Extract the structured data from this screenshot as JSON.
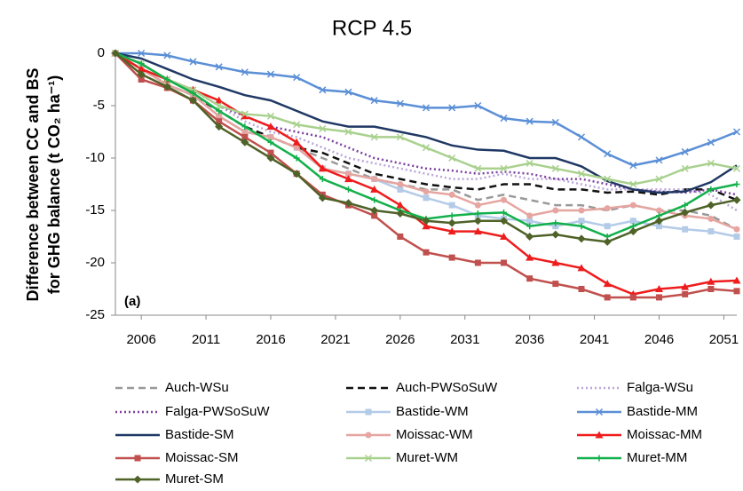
{
  "chart_data": {
    "type": "line",
    "title": "RCP 4.5",
    "y_label_lines": [
      "Difference between CC and BS",
      "for GHG balance (t CO₂ ha⁻¹)"
    ],
    "annotation": "(a)",
    "x": [
      2004,
      2006,
      2008,
      2010,
      2012,
      2014,
      2016,
      2018,
      2020,
      2022,
      2024,
      2026,
      2028,
      2030,
      2032,
      2034,
      2036,
      2038,
      2040,
      2042,
      2044,
      2046,
      2048,
      2050,
      2052
    ],
    "xlim": [
      2004,
      2052
    ],
    "xticks": [
      2006,
      2011,
      2016,
      2021,
      2026,
      2031,
      2036,
      2041,
      2046,
      2051
    ],
    "ylim": [
      -25,
      0
    ],
    "yticks": [
      0,
      -5,
      -10,
      -15,
      -20,
      -25
    ],
    "series": [
      {
        "name": "Auch-WSu",
        "color": "#999999",
        "style": "dashed",
        "marker": "none",
        "values": [
          0,
          -1.5,
          -3,
          -4,
          -5.5,
          -7,
          -8,
          -9,
          -10,
          -11,
          -12,
          -12.5,
          -13,
          -13,
          -14,
          -13.5,
          -14,
          -14.5,
          -14.5,
          -15,
          -14.5,
          -15,
          -15,
          -15.5,
          -16.8
        ]
      },
      {
        "name": "Auch-PWSoSuW",
        "color": "#111111",
        "style": "dashed",
        "marker": "none",
        "values": [
          0,
          -1.5,
          -3,
          -4,
          -5.5,
          -7,
          -8,
          -9,
          -9.5,
          -10.5,
          -11.5,
          -12,
          -12.5,
          -12.8,
          -13,
          -12.5,
          -12.5,
          -13,
          -13,
          -13.3,
          -13.2,
          -13.5,
          -13,
          -13,
          -14
        ]
      },
      {
        "name": "Falga-WSu",
        "color": "#b9a6d9",
        "style": "dotted",
        "marker": "none",
        "values": [
          0,
          -1,
          -2.5,
          -3.5,
          -5,
          -6.5,
          -7.5,
          -8,
          -9,
          -10,
          -10.5,
          -11,
          -11.5,
          -12,
          -12,
          -11.5,
          -12,
          -12,
          -12.5,
          -13,
          -13,
          -13,
          -13,
          -13.5,
          -15
        ]
      },
      {
        "name": "Falga-PWSoSuW",
        "color": "#7b3fa0",
        "style": "dotted",
        "marker": "none",
        "values": [
          0,
          -1,
          -2.5,
          -3.5,
          -5,
          -6,
          -7,
          -7.5,
          -8,
          -9,
          -10,
          -10.5,
          -11,
          -11.2,
          -11.5,
          -11.3,
          -11.5,
          -12,
          -12,
          -12.5,
          -13,
          -13.2,
          -13.3,
          -13,
          -13.5
        ]
      },
      {
        "name": "Bastide-WM",
        "color": "#b4cbe8",
        "style": "solid",
        "marker": "square",
        "values": [
          0,
          -1.5,
          -3,
          -4,
          -6,
          -7.5,
          -8,
          -9,
          -11,
          -11.5,
          -12,
          -13,
          -13.8,
          -14.5,
          -15.5,
          -15.8,
          -16,
          -16.5,
          -16,
          -16.5,
          -16,
          -16.5,
          -16.8,
          -17,
          -17.5
        ]
      },
      {
        "name": "Bastide-MM",
        "color": "#5b8fd6",
        "style": "solid",
        "marker": "x",
        "values": [
          0,
          0,
          -0.2,
          -0.8,
          -1.3,
          -1.8,
          -2,
          -2.3,
          -3.5,
          -3.7,
          -4.5,
          -4.8,
          -5.2,
          -5.2,
          -5,
          -6.2,
          -6.5,
          -6.6,
          -8,
          -9.6,
          -10.7,
          -10.2,
          -9.4,
          -8.5,
          -7.5
        ]
      },
      {
        "name": "Bastide-SM",
        "color": "#1f3864",
        "style": "solid",
        "marker": "none",
        "values": [
          0,
          -0.5,
          -1.5,
          -2.5,
          -3.2,
          -4,
          -4.5,
          -5.5,
          -6.5,
          -7,
          -7,
          -7.5,
          -8,
          -8.8,
          -9.2,
          -9.3,
          -10,
          -10,
          -10.8,
          -12.2,
          -13,
          -13.3,
          -13.2,
          -12.3,
          -10.7
        ]
      },
      {
        "name": "Moissac-WM",
        "color": "#e6a5a0",
        "style": "solid",
        "marker": "circle",
        "values": [
          0,
          -1.5,
          -3,
          -4,
          -6,
          -7.5,
          -8,
          -9,
          -11,
          -11.5,
          -12,
          -12.5,
          -13.2,
          -13.5,
          -14.5,
          -14,
          -15.5,
          -15,
          -15,
          -14.8,
          -14.5,
          -15,
          -15.5,
          -15.8,
          -16.8
        ]
      },
      {
        "name": "Moissac-MM",
        "color": "#ee1c1c",
        "style": "solid",
        "marker": "triangle",
        "values": [
          0,
          -1.5,
          -2.5,
          -3.5,
          -4.5,
          -6,
          -7,
          -8.5,
          -11,
          -12,
          -13,
          -14.5,
          -16.5,
          -17,
          -17,
          -17.5,
          -19.5,
          -20,
          -20.5,
          -22,
          -23,
          -22.5,
          -22.3,
          -21.8,
          -21.7
        ]
      },
      {
        "name": "Moissac-SM",
        "color": "#c0504d",
        "style": "solid",
        "marker": "square",
        "values": [
          0,
          -2.5,
          -3.3,
          -4.5,
          -6.5,
          -8,
          -9.5,
          -11.5,
          -13.5,
          -14.5,
          -15.5,
          -17.5,
          -19,
          -19.5,
          -20,
          -20,
          -21.5,
          -22,
          -22.5,
          -23.3,
          -23.3,
          -23.3,
          -23,
          -22.5,
          -22.7
        ]
      },
      {
        "name": "Muret-WM",
        "color": "#a9d18e",
        "style": "solid",
        "marker": "x",
        "values": [
          0,
          -1,
          -2.5,
          -3.5,
          -5,
          -5.8,
          -6,
          -6.8,
          -7.2,
          -7.5,
          -8,
          -8,
          -9,
          -10,
          -11,
          -11,
          -10.5,
          -11,
          -11.5,
          -12,
          -12.5,
          -12,
          -11,
          -10.5,
          -11
        ]
      },
      {
        "name": "Muret-MM",
        "color": "#12b04a",
        "style": "solid",
        "marker": "plus",
        "values": [
          0,
          -1,
          -2.5,
          -3.8,
          -5.5,
          -7,
          -8.5,
          -10,
          -12,
          -13,
          -14,
          -15,
          -15.8,
          -15.5,
          -15.3,
          -15.2,
          -16.5,
          -16.2,
          -16.5,
          -17.5,
          -16.5,
          -15.5,
          -14.5,
          -13,
          -12.5
        ]
      },
      {
        "name": "Muret-SM",
        "color": "#4f6228",
        "style": "solid",
        "marker": "diamond",
        "values": [
          0,
          -2,
          -3.2,
          -4.5,
          -7,
          -8.5,
          -10,
          -11.5,
          -13.8,
          -14.3,
          -15,
          -15.3,
          -16,
          -16.2,
          -16,
          -16,
          -17.5,
          -17.3,
          -17.7,
          -18,
          -17,
          -16,
          -15.2,
          -14.5,
          -14
        ]
      }
    ]
  }
}
